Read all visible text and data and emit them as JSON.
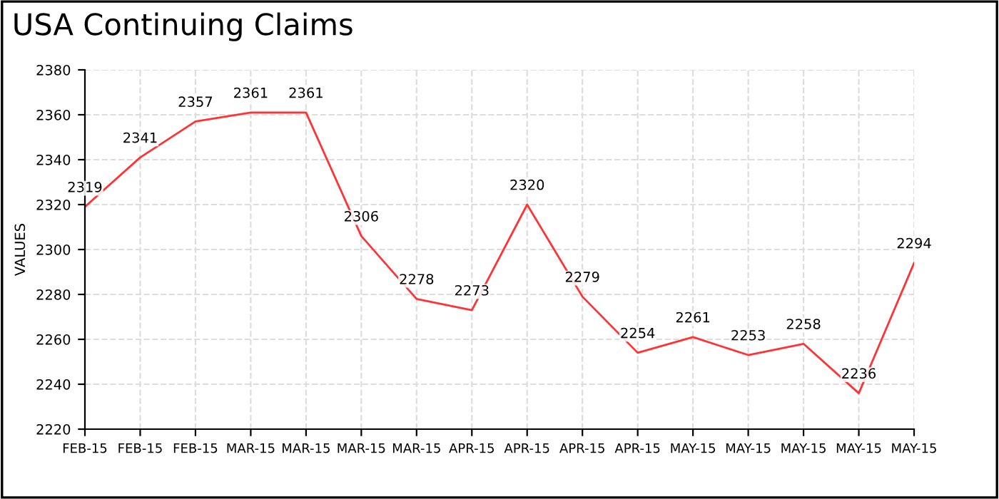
{
  "chart_data": {
    "type": "line",
    "title": "USA Continuing Claims",
    "ylabel": "VALUES",
    "categories": [
      "FEB-15",
      "FEB-15",
      "FEB-15",
      "MAR-15",
      "MAR-15",
      "MAR-15",
      "MAR-15",
      "APR-15",
      "APR-15",
      "APR-15",
      "APR-15",
      "MAY-15",
      "MAY-15",
      "MAY-15",
      "MAY-15",
      "MAY-15"
    ],
    "series": [
      {
        "color": "#ff3333",
        "values": [
          2319,
          2341,
          2357,
          2361,
          2361,
          2306,
          2278,
          2273,
          2320,
          2279,
          2254,
          2261,
          2253,
          2258,
          2236,
          2294
        ]
      }
    ],
    "ylim": [
      2220,
      2380
    ],
    "yticks": [
      2220,
      2240,
      2260,
      2280,
      2300,
      2320,
      2340,
      2360,
      2380
    ],
    "grid": true,
    "data_labels": true,
    "marker": "none",
    "line_style": "solid"
  }
}
